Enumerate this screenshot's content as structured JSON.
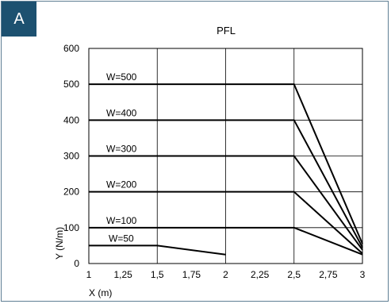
{
  "panel": {
    "label": "A",
    "badge_color": "#1d5170",
    "border_color": "#5f7f94"
  },
  "chart_data": {
    "type": "line",
    "title": "PFL",
    "xlabel": "X (m)",
    "ylabel": "Y (N/m)",
    "xlim": [
      1,
      3
    ],
    "ylim": [
      0,
      600
    ],
    "grid": true,
    "x_ticks": [
      1,
      1.25,
      1.5,
      1.75,
      2,
      2.25,
      2.5,
      2.75,
      3
    ],
    "x_tick_labels": [
      "1",
      "1,25",
      "1,5",
      "1,75",
      "2",
      "2,25",
      "2,5",
      "2,75",
      "3"
    ],
    "y_ticks": [
      0,
      100,
      200,
      300,
      400,
      500,
      600
    ],
    "y_tick_labels": [
      "0",
      "100",
      "200",
      "300",
      "400",
      "500",
      "600"
    ],
    "series": [
      {
        "name": "W=500",
        "x": [
          1,
          2.5,
          3
        ],
        "y": [
          500,
          500,
          55
        ]
      },
      {
        "name": "W=400",
        "x": [
          1,
          2.5,
          3
        ],
        "y": [
          400,
          400,
          45
        ]
      },
      {
        "name": "W=300",
        "x": [
          1,
          2.5,
          3
        ],
        "y": [
          300,
          300,
          38
        ]
      },
      {
        "name": "W=200",
        "x": [
          1,
          2.5,
          3
        ],
        "y": [
          200,
          200,
          28
        ]
      },
      {
        "name": "W=100",
        "x": [
          1,
          2.5,
          3
        ],
        "y": [
          100,
          100,
          25
        ]
      },
      {
        "name": "W=50",
        "x": [
          1,
          1.5,
          2
        ],
        "y": [
          50,
          50,
          25
        ]
      }
    ]
  }
}
